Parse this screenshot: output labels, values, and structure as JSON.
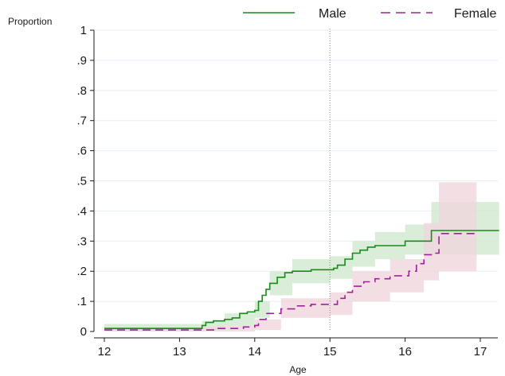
{
  "chart_data": {
    "type": "line",
    "title": "",
    "xlabel": "Age",
    "ylabel": "Proportion",
    "xlim": [
      12,
      17.25
    ],
    "ylim": [
      0,
      1
    ],
    "x_ticks": [
      12,
      13,
      14,
      15,
      16,
      17
    ],
    "x_tick_labels": [
      "12",
      "13",
      "14",
      "15",
      "16",
      "17"
    ],
    "y_ticks": [
      0,
      0.1,
      0.2,
      0.3,
      0.4,
      0.5,
      0.6,
      0.7,
      0.8,
      0.9,
      1
    ],
    "y_tick_labels": [
      "0",
      ".1",
      ".2",
      ".3",
      ".4",
      ".5",
      ".6",
      ".7",
      ".8",
      ".9",
      "1"
    ],
    "grid": "horizontal",
    "reference_line_x": 15,
    "legend_position": "top",
    "series": [
      {
        "name": "Male",
        "color": "#1a8a1a",
        "band_color": "#cfe8cf",
        "line_style": "solid",
        "step": [
          [
            12.0,
            0.01
          ],
          [
            13.25,
            0.01
          ],
          [
            13.3,
            0.02
          ],
          [
            13.35,
            0.03
          ],
          [
            13.45,
            0.035
          ],
          [
            13.6,
            0.04
          ],
          [
            13.7,
            0.045
          ],
          [
            13.8,
            0.06
          ],
          [
            13.9,
            0.065
          ],
          [
            14.0,
            0.07
          ],
          [
            14.05,
            0.1
          ],
          [
            14.1,
            0.12
          ],
          [
            14.15,
            0.14
          ],
          [
            14.2,
            0.16
          ],
          [
            14.3,
            0.18
          ],
          [
            14.4,
            0.195
          ],
          [
            14.5,
            0.2
          ],
          [
            14.75,
            0.205
          ],
          [
            15.05,
            0.21
          ],
          [
            15.1,
            0.22
          ],
          [
            15.2,
            0.24
          ],
          [
            15.3,
            0.26
          ],
          [
            15.4,
            0.27
          ],
          [
            15.5,
            0.28
          ],
          [
            15.6,
            0.285
          ],
          [
            16.0,
            0.3
          ],
          [
            16.35,
            0.335
          ],
          [
            17.25,
            0.335
          ]
        ],
        "ci_lower": [
          [
            12.0,
            0.0
          ],
          [
            13.3,
            0.005
          ],
          [
            13.6,
            0.02
          ],
          [
            14.0,
            0.045
          ],
          [
            14.2,
            0.12
          ],
          [
            14.5,
            0.16
          ],
          [
            15.0,
            0.175
          ],
          [
            15.3,
            0.215
          ],
          [
            15.6,
            0.24
          ],
          [
            16.0,
            0.255
          ],
          [
            16.35,
            0.255
          ],
          [
            17.25,
            0.255
          ]
        ],
        "ci_upper": [
          [
            12.0,
            0.025
          ],
          [
            13.3,
            0.035
          ],
          [
            13.6,
            0.06
          ],
          [
            14.0,
            0.1
          ],
          [
            14.2,
            0.2
          ],
          [
            14.5,
            0.24
          ],
          [
            15.0,
            0.25
          ],
          [
            15.3,
            0.3
          ],
          [
            15.6,
            0.33
          ],
          [
            16.0,
            0.355
          ],
          [
            16.35,
            0.43
          ],
          [
            17.25,
            0.435
          ]
        ]
      },
      {
        "name": "Female",
        "color": "#a0229b",
        "band_color": "#efd6dc",
        "line_style": "dashed",
        "step": [
          [
            12.0,
            0.005
          ],
          [
            13.25,
            0.005
          ],
          [
            13.5,
            0.01
          ],
          [
            13.85,
            0.015
          ],
          [
            14.0,
            0.02
          ],
          [
            14.05,
            0.04
          ],
          [
            14.15,
            0.06
          ],
          [
            14.35,
            0.075
          ],
          [
            14.55,
            0.085
          ],
          [
            14.75,
            0.09
          ],
          [
            15.0,
            0.09
          ],
          [
            15.1,
            0.11
          ],
          [
            15.2,
            0.13
          ],
          [
            15.3,
            0.15
          ],
          [
            15.45,
            0.165
          ],
          [
            15.6,
            0.175
          ],
          [
            15.8,
            0.185
          ],
          [
            16.05,
            0.2
          ],
          [
            16.15,
            0.225
          ],
          [
            16.25,
            0.255
          ],
          [
            16.4,
            0.26
          ],
          [
            16.45,
            0.325
          ],
          [
            16.95,
            0.325
          ]
        ],
        "ci_lower": [
          [
            12.0,
            0.0
          ],
          [
            13.5,
            0.0
          ],
          [
            14.0,
            0.005
          ],
          [
            14.35,
            0.045
          ],
          [
            15.0,
            0.055
          ],
          [
            15.3,
            0.1
          ],
          [
            15.8,
            0.13
          ],
          [
            16.25,
            0.17
          ],
          [
            16.45,
            0.2
          ],
          [
            16.95,
            0.2
          ]
        ],
        "ci_upper": [
          [
            12.0,
            0.015
          ],
          [
            13.5,
            0.02
          ],
          [
            14.0,
            0.04
          ],
          [
            14.35,
            0.11
          ],
          [
            15.0,
            0.13
          ],
          [
            15.3,
            0.2
          ],
          [
            15.8,
            0.24
          ],
          [
            16.25,
            0.36
          ],
          [
            16.45,
            0.495
          ],
          [
            16.95,
            0.495
          ]
        ]
      }
    ]
  }
}
